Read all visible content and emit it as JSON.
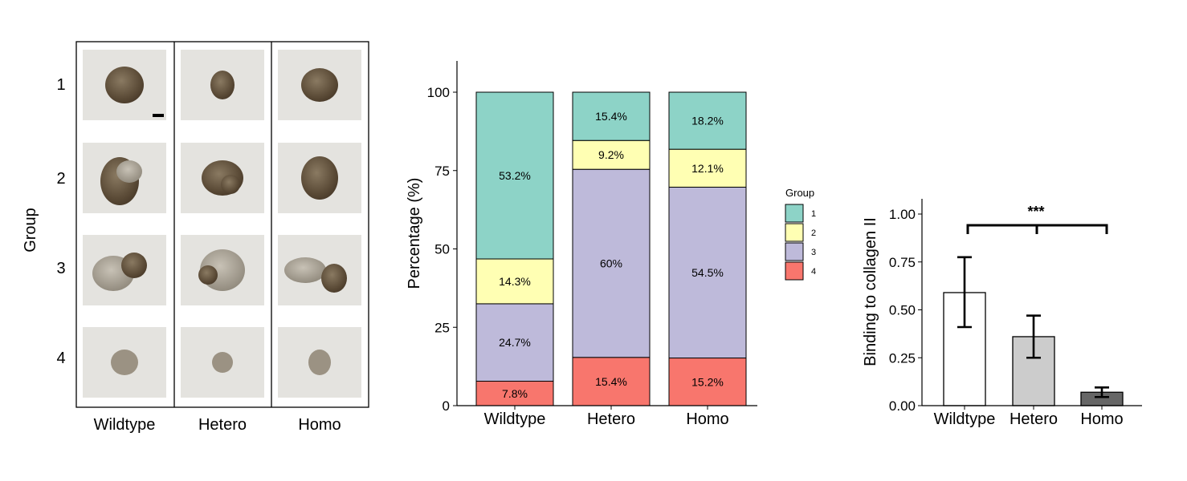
{
  "panel_a": {
    "ylabel": "Group",
    "rows": [
      "1",
      "2",
      "3",
      "4"
    ],
    "columns": [
      "Wildtype",
      "Hetero",
      "Homo"
    ],
    "photo_background": "#e4e3df",
    "spheroid_color": "#6b5b45"
  },
  "chart_data": [
    {
      "type": "bar",
      "stacked": true,
      "categories": [
        "Wildtype",
        "Hetero",
        "Homo"
      ],
      "ylabel": "Percentage (%)",
      "ylim": [
        0,
        100
      ],
      "yticks": [
        0,
        25,
        50,
        75,
        100
      ],
      "legend": {
        "title": "Group",
        "placement": "right"
      },
      "series": [
        {
          "name": "4",
          "color": "#f8766d",
          "values": [
            7.8,
            15.4,
            15.2
          ],
          "labels": [
            "7.8%",
            "15.4%",
            "15.2%"
          ]
        },
        {
          "name": "3",
          "color": "#bebada",
          "values": [
            24.7,
            60,
            54.5
          ],
          "labels": [
            "24.7%",
            "60%",
            "54.5%"
          ]
        },
        {
          "name": "2",
          "color": "#ffffb3",
          "values": [
            14.3,
            9.2,
            12.1
          ],
          "labels": [
            "14.3%",
            "9.2%",
            "12.1%"
          ]
        },
        {
          "name": "1",
          "color": "#8dd3c7",
          "values": [
            53.2,
            15.4,
            18.2
          ],
          "labels": [
            "53.2%",
            "15.4%",
            "18.2%"
          ]
        }
      ]
    },
    {
      "type": "bar",
      "categories": [
        "Wildtype",
        "Hetero",
        "Homo"
      ],
      "values": [
        0.59,
        0.36,
        0.07
      ],
      "error_low": [
        0.41,
        0.25,
        0.045
      ],
      "error_high": [
        0.775,
        0.47,
        0.095
      ],
      "colors": [
        "#ffffff",
        "#cccccc",
        "#666666"
      ],
      "ylabel": "Binding to collagen II",
      "ylim": [
        0,
        1.08
      ],
      "yticks": [
        0,
        0.25,
        0.5,
        0.75,
        1.0
      ],
      "ytick_labels": [
        "0.00",
        "0.25",
        "0.50",
        "0.75",
        "1.00"
      ],
      "significance": "***"
    }
  ]
}
